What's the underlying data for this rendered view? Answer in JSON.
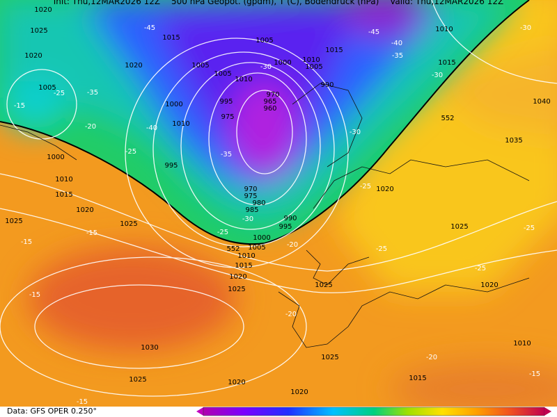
{
  "header": {
    "init": "Init: Thu,12MAR2026 12Z",
    "title": "500 hPa Geopot. (gpdm), T (C), Bodendruck (hPa)",
    "valid": "Valid: Thu,12MAR2026 12Z"
  },
  "footer": {
    "source": "Data: GFS OPER 0.250°"
  },
  "isobar_labels": [
    "1020",
    "1025",
    "1020",
    "1015",
    "1020",
    "1005",
    "1000",
    "1010",
    "995",
    "1000",
    "1010",
    "1015",
    "1020",
    "1025",
    "1025",
    "1005",
    "1005",
    "1010",
    "1005",
    "1000",
    "1010",
    "1005",
    "1015",
    "990",
    "970",
    "965",
    "960",
    "995",
    "975",
    "970",
    "975",
    "980",
    "985",
    "990",
    "995",
    "1000",
    "1005",
    "1010",
    "1015",
    "1020",
    "1025",
    "1025",
    "1030",
    "1025",
    "1020",
    "1020",
    "1025",
    "1015",
    "1010",
    "1020",
    "1025",
    "1020",
    "1035",
    "1040",
    "1010",
    "1015"
  ],
  "temperature_labels": [
    "-45",
    "-35",
    "-25",
    "-15",
    "-20",
    "-40",
    "-25",
    "-35",
    "-30",
    "-30",
    "-25",
    "-20",
    "-30",
    "-25",
    "-45",
    "-40",
    "-35",
    "-30",
    "-30",
    "-25",
    "-25",
    "-25",
    "-20",
    "-15",
    "-15",
    "-15",
    "-20",
    "-15",
    "-15"
  ],
  "height_labels": [
    "552",
    "552"
  ]
}
